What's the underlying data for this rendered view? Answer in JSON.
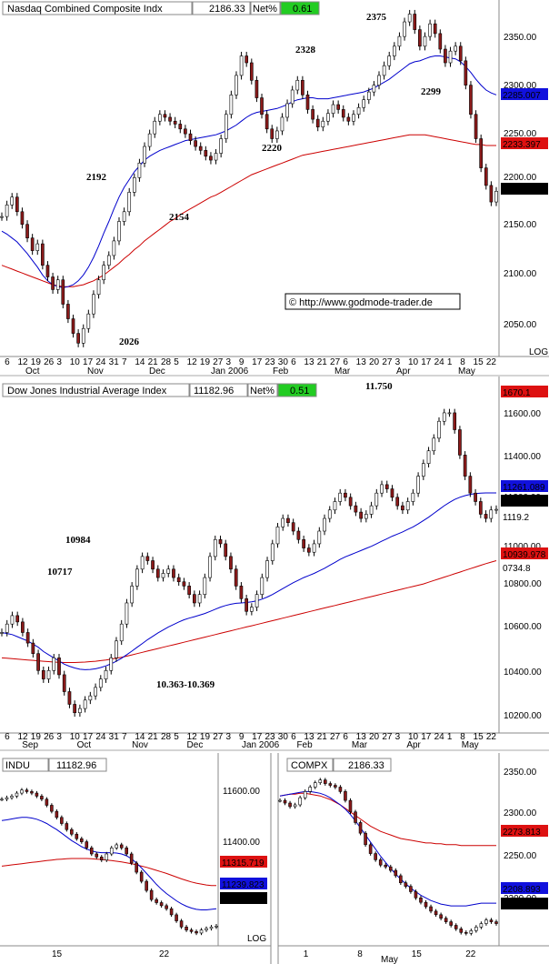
{
  "colors": {
    "price": "#000000",
    "candle_down": "#8b1a1a",
    "ma_blue": "#0000cc",
    "ma_red": "#cc0000",
    "trend_red": "#dd2222",
    "trend_teal": "#1e9ea0",
    "netpct_bg": "#22cc22",
    "tag_blue": "#1111dd",
    "tag_red": "#dd1111"
  },
  "chart_data": [
    {
      "type": "candlestick",
      "title": "Nasdaq Combined Composite Indx",
      "last_value": "2186.33",
      "netpct_label": "Net%",
      "netpct_value": "0.61",
      "ylim": [
        2020,
        2375
      ],
      "yticks": [
        "2350.00",
        "2300.00",
        "2250.00",
        "2200.00",
        "2150.00",
        "2100.00",
        "2050.00"
      ],
      "log_label": "LOG",
      "x_day_labels": [
        "6",
        "12",
        "19",
        "26",
        "3",
        "10",
        "17",
        "24",
        "31",
        "7",
        "14",
        "21",
        "28",
        "5",
        "12",
        "19",
        "27",
        "3",
        "9",
        "17",
        "23",
        "30",
        "6",
        "13",
        "21",
        "27",
        "6",
        "13",
        "20",
        "27",
        "3",
        "10",
        "17",
        "24",
        "1",
        "8",
        "15",
        "22"
      ],
      "x_month_labels": [
        "Oct",
        "Nov",
        "Dec",
        "Jan 2006",
        "Feb",
        "Mar",
        "Apr",
        "May"
      ],
      "level_labels": [
        "2375",
        "2328",
        "2299",
        "2220",
        "2192",
        "2154",
        "2026"
      ],
      "right_tags": [
        {
          "text": "2285.007",
          "color": "blue"
        },
        {
          "text": "2233.397",
          "color": "red"
        },
        {
          "text": "2186.33",
          "color": "black"
        }
      ],
      "watermark": "© http://www.godmode-trader.de",
      "series_close": [
        2160,
        2172,
        2180,
        2165,
        2152,
        2138,
        2125,
        2132,
        2110,
        2098,
        2085,
        2095,
        2070,
        2055,
        2040,
        2030,
        2045,
        2060,
        2080,
        2095,
        2110,
        2120,
        2135,
        2155,
        2165,
        2185,
        2200,
        2215,
        2232,
        2245,
        2258,
        2265,
        2262,
        2258,
        2255,
        2250,
        2245,
        2238,
        2232,
        2228,
        2222,
        2218,
        2225,
        2240,
        2265,
        2285,
        2305,
        2325,
        2318,
        2300,
        2282,
        2265,
        2250,
        2240,
        2248,
        2262,
        2276,
        2290,
        2300,
        2285,
        2270,
        2260,
        2252,
        2258,
        2266,
        2275,
        2270,
        2262,
        2258,
        2265,
        2272,
        2280,
        2288,
        2295,
        2305,
        2315,
        2325,
        2335,
        2345,
        2360,
        2368,
        2352,
        2335,
        2345,
        2358,
        2348,
        2332,
        2318,
        2330,
        2335,
        2320,
        2295,
        2265,
        2240,
        2210,
        2192,
        2175,
        2186
      ],
      "series_ma_blue": [
        2145,
        2142,
        2138,
        2134,
        2128,
        2122,
        2115,
        2108,
        2100,
        2094,
        2090,
        2088,
        2087,
        2088,
        2090,
        2094,
        2100,
        2108,
        2118,
        2130,
        2143,
        2155,
        2168,
        2180,
        2190,
        2198,
        2206,
        2212,
        2218,
        2222,
        2225,
        2228,
        2230,
        2232,
        2234,
        2236,
        2238,
        2239,
        2240,
        2241,
        2242,
        2243,
        2244,
        2246,
        2248,
        2251,
        2254,
        2258,
        2262,
        2265,
        2267,
        2268,
        2269,
        2270,
        2271,
        2273,
        2275,
        2278,
        2280,
        2281,
        2282,
        2282,
        2281,
        2281,
        2281,
        2282,
        2283,
        2284,
        2285,
        2286,
        2287,
        2288,
        2290,
        2292,
        2295,
        2298,
        2301,
        2305,
        2309,
        2313,
        2317,
        2319,
        2320,
        2322,
        2324,
        2325,
        2325,
        2324,
        2323,
        2322,
        2319,
        2314,
        2308,
        2301,
        2295,
        2290,
        2287,
        2285
      ],
      "series_ma_red": [
        2110,
        2108,
        2106,
        2104,
        2102,
        2100,
        2098,
        2096,
        2094,
        2092,
        2090,
        2089,
        2088,
        2088,
        2088,
        2089,
        2090,
        2092,
        2094,
        2097,
        2100,
        2104,
        2108,
        2112,
        2117,
        2121,
        2126,
        2130,
        2135,
        2139,
        2143,
        2147,
        2151,
        2155,
        2158,
        2162,
        2165,
        2168,
        2171,
        2174,
        2177,
        2180,
        2182,
        2185,
        2188,
        2191,
        2194,
        2197,
        2200,
        2203,
        2205,
        2207,
        2209,
        2211,
        2213,
        2215,
        2217,
        2219,
        2221,
        2223,
        2224,
        2225,
        2226,
        2227,
        2228,
        2229,
        2230,
        2231,
        2232,
        2233,
        2234,
        2235,
        2236,
        2237,
        2238,
        2239,
        2240,
        2241,
        2242,
        2243,
        2244,
        2244,
        2244,
        2244,
        2243,
        2242,
        2241,
        2240,
        2239,
        2238,
        2237,
        2236,
        2235,
        2234,
        2234,
        2233,
        2233,
        2233
      ]
    },
    {
      "type": "candlestick",
      "title": "Dow Jones Industrial Average Index",
      "last_value": "11182.96",
      "netpct_label": "Net%",
      "netpct_value": "0.51",
      "ylim": [
        10150,
        11700
      ],
      "yticks": [
        "11600.00",
        "11400.00",
        "11200.00",
        "11000.00",
        "10800.00",
        "10600.00",
        "10400.00",
        "10200.00"
      ],
      "level_labels": [
        "11.750",
        "10984",
        "10717",
        "10.363-10.369"
      ],
      "right_tags": [
        {
          "text": "1670.1",
          "color": "red"
        },
        {
          "text": "11261.089",
          "color": "blue"
        },
        {
          "text": "11182.96",
          "color": "black"
        },
        {
          "text": "1119.2",
          "color": "teal"
        },
        {
          "text": "10939.978",
          "color": "red"
        },
        {
          "text": "0734.8",
          "color": "teal"
        }
      ],
      "x_day_labels": [
        "6",
        "12",
        "19",
        "26",
        "3",
        "10",
        "17",
        "24",
        "31",
        "7",
        "14",
        "21",
        "28",
        "5",
        "12",
        "19",
        "27",
        "3",
        "9",
        "17",
        "23",
        "30",
        "6",
        "13",
        "21",
        "27",
        "6",
        "13",
        "20",
        "27",
        "3",
        "10",
        "17",
        "24",
        "1",
        "8",
        "15",
        "22"
      ],
      "x_month_labels": [
        "Sep",
        "Oct",
        "Nov",
        "Dec",
        "Jan 2006",
        "Feb",
        "Mar",
        "Apr",
        "May"
      ],
      "series_close": [
        10600,
        10640,
        10680,
        10650,
        10600,
        10550,
        10500,
        10420,
        10380,
        10420,
        10480,
        10400,
        10320,
        10260,
        10220,
        10240,
        10280,
        10300,
        10340,
        10380,
        10420,
        10480,
        10560,
        10640,
        10740,
        10820,
        10900,
        10960,
        10940,
        10900,
        10860,
        10880,
        10900,
        10860,
        10840,
        10820,
        10780,
        10740,
        10780,
        10860,
        10960,
        11040,
        11020,
        10960,
        10900,
        10820,
        10760,
        10700,
        10720,
        10780,
        10860,
        10940,
        11020,
        11100,
        11140,
        11120,
        11080,
        11040,
        11000,
        10980,
        11020,
        11080,
        11140,
        11180,
        11220,
        11260,
        11240,
        11200,
        11170,
        11140,
        11160,
        11200,
        11260,
        11300,
        11280,
        11240,
        11200,
        11180,
        11220,
        11260,
        11340,
        11400,
        11460,
        11520,
        11600,
        11640,
        11640,
        11560,
        11440,
        11340,
        11260,
        11220,
        11160,
        11140,
        11180,
        11183
      ],
      "series_ma_blue": [
        10600,
        10595,
        10590,
        10580,
        10570,
        10560,
        10545,
        10530,
        10510,
        10495,
        10480,
        10465,
        10450,
        10440,
        10432,
        10426,
        10424,
        10425,
        10428,
        10434,
        10442,
        10452,
        10464,
        10478,
        10495,
        10512,
        10530,
        10548,
        10566,
        10582,
        10598,
        10612,
        10626,
        10638,
        10650,
        10660,
        10668,
        10675,
        10682,
        10690,
        10700,
        10710,
        10720,
        10728,
        10734,
        10738,
        10740,
        10742,
        10745,
        10750,
        10758,
        10768,
        10780,
        10794,
        10808,
        10822,
        10836,
        10848,
        10860,
        10870,
        10880,
        10892,
        10904,
        10918,
        10932,
        10946,
        10958,
        10968,
        10978,
        10988,
        10998,
        11008,
        11020,
        11032,
        11044,
        11056,
        11066,
        11076,
        11088,
        11100,
        11114,
        11130,
        11146,
        11164,
        11182,
        11200,
        11216,
        11230,
        11240,
        11248,
        11254,
        11258,
        11260,
        11261,
        11261,
        11261
      ],
      "series_ma_red": [
        10480,
        10478,
        10476,
        10474,
        10472,
        10470,
        10468,
        10466,
        10464,
        10462,
        10460,
        10459,
        10458,
        10458,
        10458,
        10459,
        10460,
        10462,
        10464,
        10467,
        10470,
        10474,
        10478,
        10483,
        10488,
        10494,
        10500,
        10506,
        10512,
        10518,
        10524,
        10530,
        10536,
        10542,
        10548,
        10554,
        10560,
        10566,
        10572,
        10578,
        10584,
        10590,
        10596,
        10602,
        10608,
        10614,
        10620,
        10626,
        10632,
        10638,
        10644,
        10650,
        10656,
        10662,
        10668,
        10674,
        10680,
        10686,
        10692,
        10698,
        10704,
        10710,
        10716,
        10722,
        10728,
        10734,
        10740,
        10746,
        10752,
        10758,
        10764,
        10770,
        10776,
        10782,
        10788,
        10794,
        10800,
        10806,
        10812,
        10818,
        10824,
        10830,
        10838,
        10846,
        10854,
        10862,
        10870,
        10878,
        10886,
        10894,
        10902,
        10910,
        10918,
        10926,
        10933,
        10940
      ]
    },
    {
      "type": "line",
      "title": "INDU",
      "last_value": "11182.96",
      "ylim": [
        11130,
        11680
      ],
      "yticks": [
        "11600.00",
        "11400.00"
      ],
      "x_labels": [
        "15",
        "22"
      ],
      "log_label": "LOG",
      "right_tags": [
        {
          "text": "11315.719",
          "color": "red"
        },
        {
          "text": "11239.823",
          "color": "blue"
        },
        {
          "text": "11182.96",
          "color": "black"
        }
      ],
      "series_close": [
        11600,
        11605,
        11610,
        11620,
        11630,
        11625,
        11620,
        11610,
        11600,
        11580,
        11560,
        11540,
        11520,
        11500,
        11485,
        11470,
        11460,
        11440,
        11420,
        11410,
        11400,
        11420,
        11440,
        11450,
        11440,
        11420,
        11390,
        11360,
        11330,
        11300,
        11270,
        11260,
        11250,
        11240,
        11220,
        11200,
        11180,
        11170,
        11165,
        11160,
        11170,
        11175,
        11180,
        11183
      ],
      "series_ma_blue": [
        11530,
        11532,
        11535,
        11538,
        11540,
        11540,
        11538,
        11534,
        11528,
        11520,
        11510,
        11500,
        11488,
        11476,
        11464,
        11454,
        11444,
        11436,
        11430,
        11426,
        11424,
        11424,
        11424,
        11423,
        11420,
        11414,
        11404,
        11390,
        11374,
        11356,
        11338,
        11320,
        11304,
        11290,
        11278,
        11266,
        11256,
        11248,
        11242,
        11238,
        11236,
        11236,
        11238,
        11240
      ],
      "series_ma_red": [
        11380,
        11382,
        11384,
        11386,
        11388,
        11390,
        11392,
        11394,
        11396,
        11398,
        11400,
        11402,
        11403,
        11404,
        11405,
        11405,
        11405,
        11405,
        11404,
        11403,
        11402,
        11400,
        11398,
        11396,
        11394,
        11391,
        11388,
        11384,
        11380,
        11376,
        11371,
        11366,
        11361,
        11356,
        11350,
        11344,
        11338,
        11333,
        11328,
        11324,
        11321,
        11318,
        11316,
        11316
      ]
    },
    {
      "type": "line",
      "title": "COMPX",
      "last_value": "2186.33",
      "ylim": [
        2165,
        2360
      ],
      "yticks": [
        "2350.00",
        "2300.00",
        "2250.00",
        "2200.00"
      ],
      "x_labels": [
        "1",
        "8",
        "15",
        "22"
      ],
      "x_month_labels": [
        "May"
      ],
      "right_tags": [
        {
          "text": "2273.813",
          "color": "red"
        },
        {
          "text": "2208.893",
          "color": "blue"
        },
        {
          "text": "2186.33",
          "color": "black"
        }
      ],
      "series_close": [
        2325,
        2322,
        2318,
        2320,
        2328,
        2335,
        2340,
        2345,
        2348,
        2344,
        2342,
        2340,
        2335,
        2325,
        2312,
        2300,
        2288,
        2275,
        2265,
        2258,
        2252,
        2250,
        2246,
        2240,
        2232,
        2228,
        2222,
        2215,
        2210,
        2205,
        2200,
        2196,
        2192,
        2188,
        2184,
        2180,
        2176,
        2175,
        2178,
        2182,
        2186,
        2190,
        2188,
        2186
      ],
      "series_ma_blue": [
        2330,
        2331,
        2332,
        2333,
        2334,
        2335,
        2335,
        2334,
        2333,
        2331,
        2328,
        2324,
        2320,
        2315,
        2309,
        2302,
        2294,
        2286,
        2278,
        2270,
        2262,
        2255,
        2248,
        2242,
        2236,
        2231,
        2226,
        2222,
        2218,
        2215,
        2212,
        2210,
        2208,
        2207,
        2206,
        2206,
        2206,
        2206,
        2207,
        2208,
        2209,
        2209,
        2209,
        2209
      ],
      "series_ma_red": [
        2330,
        2331,
        2332,
        2332,
        2333,
        2333,
        2332,
        2331,
        2330,
        2328,
        2326,
        2323,
        2320,
        2316,
        2312,
        2308,
        2304,
        2300,
        2296,
        2293,
        2290,
        2288,
        2286,
        2284,
        2282,
        2281,
        2280,
        2279,
        2278,
        2277,
        2277,
        2276,
        2276,
        2275,
        2275,
        2275,
        2274,
        2274,
        2274,
        2274,
        2274,
        2274,
        2274,
        2274
      ]
    }
  ]
}
